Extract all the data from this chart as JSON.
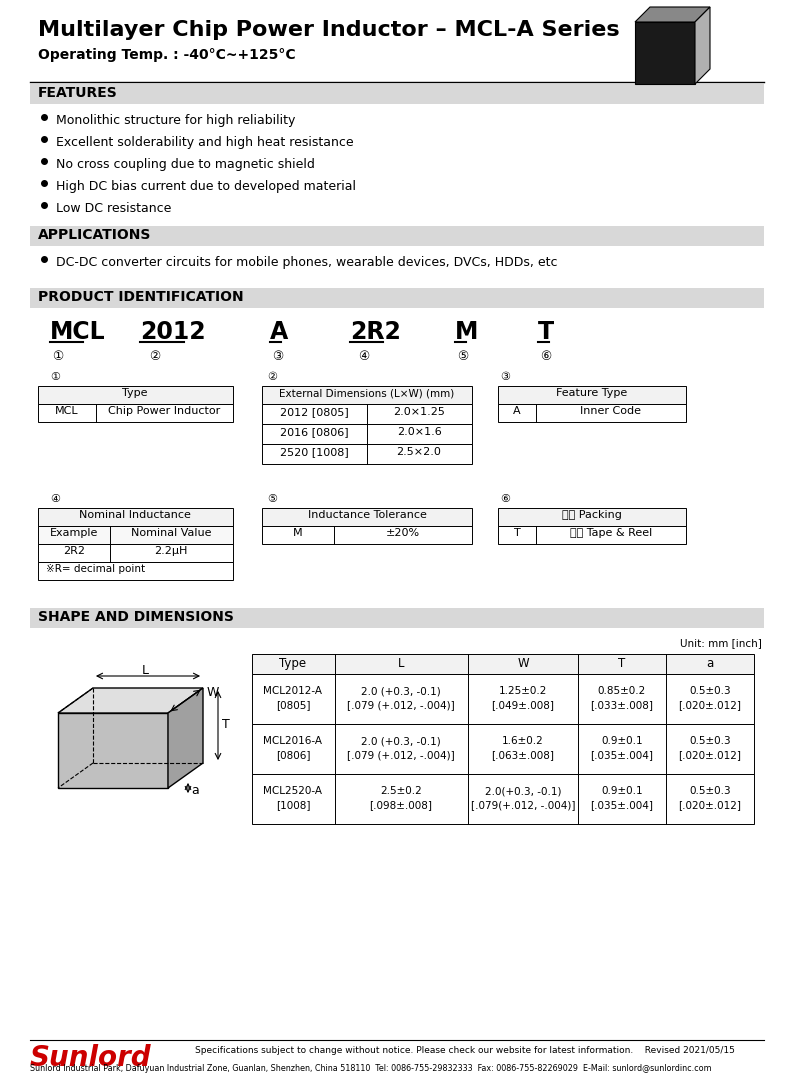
{
  "title": "Multilayer Chip Power Inductor – MCL-A Series",
  "subtitle": "Operating Temp. : -40°C~+125°C",
  "features_title": "FEATURES",
  "features": [
    "Monolithic structure for high reliability",
    "Excellent solderability and high heat resistance",
    "No cross coupling due to magnetic shield",
    "High DC bias current due to developed material",
    "Low DC resistance"
  ],
  "applications_title": "APPLICATIONS",
  "applications": [
    "DC-DC converter circuits for mobile phones, wearable devices, DVCs, HDDs, etc"
  ],
  "product_id_title": "PRODUCT IDENTIFICATION",
  "product_codes": [
    "MCL",
    "2012",
    "A",
    "2R2",
    "M",
    "T"
  ],
  "product_indices": [
    "①",
    "②",
    "③",
    "④",
    "⑤",
    "⑥"
  ],
  "table2_rows": [
    [
      "2012 [0805]",
      "2.0×1.25"
    ],
    [
      "2016 [0806]",
      "2.0×1.6"
    ],
    [
      "2520 [1008]",
      "2.5×2.0"
    ]
  ],
  "table4_note": "※R= decimal point",
  "shape_title": "SHAPE AND DIMENSIONS",
  "dim_table_header": [
    "Type",
    "L",
    "W",
    "T",
    "a"
  ],
  "dim_table_rows": [
    [
      "MCL2012-A\n[0805]",
      "2.0 (+0.3, -0.1)\n[.079 (+.012, -.004)]",
      "1.25±0.2\n[.049±.008]",
      "0.85±0.2\n[.033±.008]",
      "0.5±0.3\n[.020±.012]"
    ],
    [
      "MCL2016-A\n[0806]",
      "2.0 (+0.3, -0.1)\n[.079 (+.012, -.004)]",
      "1.6±0.2\n[.063±.008]",
      "0.9±0.1\n[.035±.004]",
      "0.5±0.3\n[.020±.012]"
    ],
    [
      "MCL2520-A\n[1008]",
      "2.5±0.2\n[.098±.008]",
      "2.0(+0.3, -0.1)\n[.079(+.012, -.004)]",
      "0.9±0.1\n[.035±.004]",
      "0.5±0.3\n[.020±.012]"
    ]
  ],
  "unit_note": "Unit: mm [inch]",
  "footer_company": "Sunlord",
  "footer_note": "Specifications subject to change without notice. Please check our website for latest information.    Revised 2021/05/15",
  "footer_address": "Sunlord Industrial Park, Dafuyuan Industrial Zone, Guanlan, Shenzhen, China 518110  Tel: 0086-755-29832333  Fax: 0086-755-82269029  E-Mail: sunlord@sunlordinc.com",
  "bg_color": "#ffffff",
  "section_bg": "#d8d8d8"
}
